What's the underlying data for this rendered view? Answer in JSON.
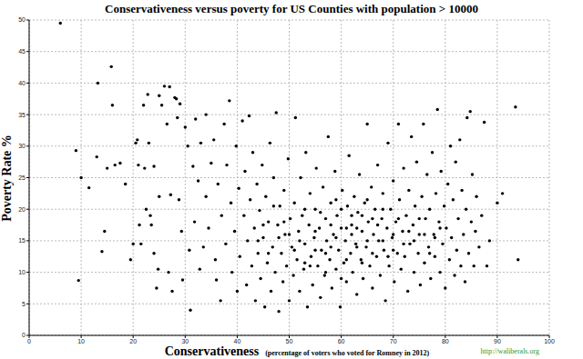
{
  "chart_data": {
    "type": "scatter",
    "title": "Conservativeness versus poverty for US Counties with population > 10000",
    "x_label": "Conservativeness",
    "x_label_note": "(percentage of voters who voted for Romney in 2012)",
    "y_label": "Poverty Rate %",
    "annotations": [
      "http://waliberals.org"
    ],
    "color": "#000000",
    "marker": "circle",
    "grid": true,
    "xlim": [
      0,
      100
    ],
    "xticks": [
      0,
      10,
      20,
      30,
      40,
      50,
      60,
      70,
      80,
      90,
      100
    ],
    "ylim": [
      0,
      50
    ],
    "yticks": [
      0,
      5,
      10,
      15,
      20,
      25,
      30,
      35,
      40,
      45,
      50
    ],
    "x": [
      6,
      9,
      9.5,
      10,
      11.5,
      13,
      13.2,
      14,
      14.5,
      15,
      15.8,
      16,
      16.5,
      17.5,
      18.5,
      19.5,
      20,
      20.5,
      20.8,
      21,
      21.2,
      21.5,
      22,
      22.2,
      22.5,
      22.8,
      23,
      23.3,
      23.5,
      24,
      24,
      24.5,
      24.8,
      25,
      25,
      25.5,
      26,
      26.5,
      26.8,
      27,
      27.2,
      27.5,
      28,
      28.3,
      28.5,
      28.8,
      29,
      29.3,
      29.5,
      30,
      30.5,
      30.8,
      31,
      31.5,
      31.8,
      32,
      32.5,
      32.8,
      33,
      33.5,
      34,
      34,
      34.5,
      35,
      35.5,
      35.8,
      36,
      36.3,
      36.8,
      37,
      37.5,
      37.8,
      38,
      38.5,
      38.8,
      39,
      39.5,
      39.8,
      40,
      40.3,
      40.5,
      41,
      41.3,
      41.5,
      41.8,
      42,
      42.3,
      42.5,
      42.8,
      43,
      43.3,
      43.5,
      43.8,
      44,
      44.3,
      44.5,
      44.8,
      45,
      45.3,
      45.5,
      45.8,
      46,
      46.3,
      46.5,
      46.8,
      47,
      47.3,
      47.5,
      47.8,
      48,
      48.2,
      48.5,
      48.8,
      49,
      49.2,
      49.5,
      49.8,
      50,
      50.2,
      50.5,
      50.8,
      51,
      51.2,
      51.5,
      51.8,
      52,
      52.2,
      52.5,
      52.8,
      53,
      53.2,
      53.5,
      53.8,
      54,
      54.2,
      54.5,
      54.8,
      55,
      55.2,
      55.5,
      55.8,
      56,
      56.2,
      56.5,
      56.8,
      57,
      57.2,
      57.5,
      57.8,
      58,
      58.2,
      58.5,
      58.8,
      59,
      59.2,
      59.5,
      59.8,
      60,
      60.2,
      60.5,
      60.8,
      61,
      61.2,
      61.5,
      61.8,
      62,
      62.2,
      62.5,
      62.8,
      63,
      63.2,
      63.5,
      63.8,
      64,
      64.2,
      64.5,
      64.8,
      65,
      65.2,
      65.5,
      65.8,
      66,
      66.2,
      66.5,
      66.8,
      67,
      67.2,
      67.5,
      67.8,
      68,
      68.2,
      68.5,
      68.8,
      69,
      69.2,
      69.5,
      69.8,
      70,
      70.2,
      70.5,
      70.8,
      71,
      71.2,
      71.5,
      71.8,
      72,
      72.2,
      72.5,
      72.8,
      73,
      73.2,
      73.5,
      73.8,
      74,
      74.2,
      74.5,
      74.8,
      75,
      75.2,
      75.5,
      75.8,
      76,
      76.2,
      76.5,
      76.8,
      77,
      77.2,
      77.5,
      77.8,
      78,
      78.2,
      78.5,
      78.8,
      79,
      79.2,
      79.5,
      79.8,
      80,
      80.2,
      80.5,
      80.8,
      81,
      81.2,
      81.5,
      81.8,
      82,
      82.2,
      82.5,
      82.8,
      83,
      83.2,
      83.5,
      83.8,
      84,
      84.2,
      84.5,
      84.8,
      85,
      85.2,
      85.5,
      85.8,
      86,
      86.5,
      87,
      87.5,
      88,
      88.5,
      90,
      91,
      93.5,
      94,
      52,
      53,
      54,
      55,
      56,
      57,
      58,
      59,
      60,
      61,
      62,
      63,
      64,
      65,
      66,
      67,
      68,
      69,
      70,
      71,
      72,
      73,
      74,
      75,
      76,
      77,
      78,
      79,
      61,
      58,
      55,
      64,
      66,
      68,
      70,
      62,
      59,
      57,
      65,
      63,
      50,
      48,
      46,
      47,
      51,
      49,
      53,
      45,
      44,
      60
    ],
    "values": [
      49.5,
      29.3,
      8.7,
      25,
      23.4,
      28.3,
      40,
      13.3,
      16.5,
      26.5,
      42.6,
      36.5,
      27,
      27.3,
      24,
      12,
      14.5,
      30.5,
      31,
      27,
      17.5,
      14.5,
      36.5,
      26.5,
      20,
      38.2,
      30.5,
      19,
      17.5,
      13,
      26.8,
      7.5,
      10.5,
      38,
      22,
      36.5,
      39.5,
      33.5,
      10,
      39.4,
      22.3,
      7,
      37.7,
      37.5,
      34.5,
      21.5,
      36.7,
      16.5,
      8.8,
      33,
      30,
      13.5,
      4,
      26.8,
      18,
      34.3,
      24.5,
      10.5,
      30.5,
      14,
      35,
      22,
      17,
      27.3,
      31,
      12,
      8.8,
      24,
      5.5,
      19,
      33.5,
      14.5,
      27,
      37.2,
      21,
      10,
      16.5,
      30,
      7,
      23.3,
      12.5,
      34,
      19,
      26,
      8,
      15,
      34.8,
      21.5,
      11,
      29,
      17,
      5.5,
      24,
      13,
      19.8,
      9,
      27,
      15.5,
      4.5,
      22,
      11.5,
      18,
      30.5,
      7,
      14,
      25,
      10,
      35.3,
      17.5,
      3.8,
      20.5,
      13,
      8.5,
      23,
      16,
      11,
      28,
      5.5,
      18.5,
      14,
      9.5,
      21,
      34.5,
      12,
      16.5,
      7,
      25,
      19,
      10.5,
      14.5,
      29,
      4.5,
      17.5,
      22.5,
      12.5,
      8,
      15.5,
      20,
      26.5,
      11,
      17,
      6,
      13.5,
      23.5,
      9.5,
      18.5,
      15,
      31.5,
      12,
      21,
      7.5,
      16,
      26,
      10.5,
      19,
      13.5,
      4.5,
      17,
      23,
      11.5,
      15,
      8.5,
      20.5,
      28.5,
      13,
      17.5,
      10,
      22,
      14.5,
      6.5,
      19.5,
      25.5,
      12,
      16.5,
      9,
      21,
      14,
      33.5,
      18,
      11,
      23.5,
      7.5,
      16,
      20,
      12.5,
      27,
      15,
      9.5,
      18.5,
      22.5,
      13.5,
      5.5,
      17,
      30.5,
      11,
      20,
      15.5,
      24.5,
      8.5,
      18,
      13,
      33.5,
      21.5,
      10.5,
      16.5,
      26.5,
      12.5,
      19,
      7,
      23,
      14.5,
      31.5,
      17.5,
      10,
      20.5,
      27.5,
      13,
      16,
      8,
      22,
      33.5,
      11.5,
      18.5,
      25.5,
      14,
      20,
      9,
      29,
      16,
      12.5,
      22.5,
      35.8,
      18,
      10,
      26,
      14.5,
      20.5,
      7.5,
      17,
      24,
      12,
      30,
      15.5,
      21.5,
      9.5,
      27.5,
      13.5,
      18.5,
      31,
      11,
      23,
      16,
      8.5,
      20,
      34.5,
      13,
      35.5,
      18,
      25.5,
      11,
      16.5,
      22,
      14,
      19,
      33.8,
      11,
      15,
      21,
      22.5,
      36.2,
      12,
      15,
      20,
      11,
      16.5,
      19.5,
      13,
      17.5,
      15.5,
      20,
      12,
      16,
      14,
      19,
      15,
      13,
      17.5,
      15,
      12.5,
      16,
      18.5,
      14.5,
      16.5,
      15,
      18.5,
      16,
      13,
      15.5,
      17,
      17,
      14,
      13.5,
      11.5,
      18.5,
      20,
      13.5,
      19,
      21.5,
      10,
      21.5,
      17,
      16,
      15.5,
      13,
      20.5,
      13.5,
      18,
      11.5,
      17.5,
      15,
      9
    ]
  }
}
